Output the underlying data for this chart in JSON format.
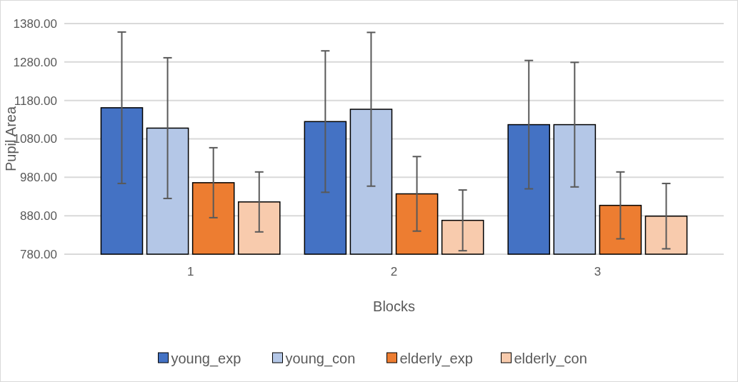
{
  "chart_data": {
    "type": "bar",
    "xlabel": "Blocks",
    "ylabel": "Pupil Area",
    "categories": [
      "1",
      "2",
      "3"
    ],
    "series": [
      {
        "name": "young_exp",
        "color": "#4472c4",
        "values": [
          1161,
          1125,
          1117
        ],
        "errors": [
          197,
          184,
          167
        ]
      },
      {
        "name": "young_con",
        "color": "#b4c7e7",
        "values": [
          1108,
          1157,
          1117
        ],
        "errors": [
          183,
          200,
          162
        ]
      },
      {
        "name": "elderly_exp",
        "color": "#ed7d31",
        "values": [
          966,
          937,
          907
        ],
        "errors": [
          91,
          97,
          87
        ]
      },
      {
        "name": "elderly_con",
        "color": "#f8cbad",
        "values": [
          916,
          868,
          879
        ],
        "errors": [
          78,
          79,
          85
        ]
      }
    ],
    "ylim": [
      780,
      1380
    ],
    "yticks": [
      {
        "value": 780,
        "label": "780.00"
      },
      {
        "value": 880,
        "label": "880.00"
      },
      {
        "value": 980,
        "label": "980.00"
      },
      {
        "value": 1080,
        "label": "1080.00"
      },
      {
        "value": 1180,
        "label": "1180.00"
      },
      {
        "value": 1280,
        "label": "1280.00"
      },
      {
        "value": 1380,
        "label": "1380.00"
      }
    ],
    "grid": "y",
    "legend": "bottom"
  }
}
